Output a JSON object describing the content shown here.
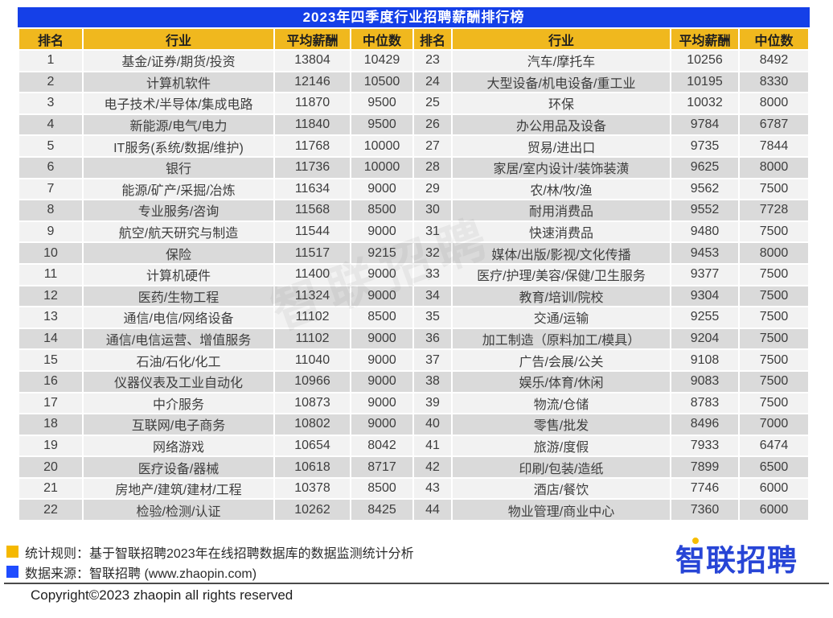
{
  "title": "2023年四季度行业招聘薪酬排行榜",
  "watermark": "智联招聘",
  "chart_data": {
    "type": "table",
    "title": "2023年四季度行业招聘薪酬排行榜",
    "columns": [
      "排名",
      "行业",
      "平均薪酬",
      "中位数"
    ],
    "layout": "two-panel table: ranks 1-22 in left panel, ranks 23-44 in right panel, zebra striped rows",
    "rows": [
      [
        1,
        "基金/证券/期货/投资",
        13804,
        10429
      ],
      [
        2,
        "计算机软件",
        12146,
        10500
      ],
      [
        3,
        "电子技术/半导体/集成电路",
        11870,
        9500
      ],
      [
        4,
        "新能源/电气/电力",
        11840,
        9500
      ],
      [
        5,
        "IT服务(系统/数据/维护)",
        11768,
        10000
      ],
      [
        6,
        "银行",
        11736,
        10000
      ],
      [
        7,
        "能源/矿产/采掘/冶炼",
        11634,
        9000
      ],
      [
        8,
        "专业服务/咨询",
        11568,
        8500
      ],
      [
        9,
        "航空/航天研究与制造",
        11544,
        9000
      ],
      [
        10,
        "保险",
        11517,
        9215
      ],
      [
        11,
        "计算机硬件",
        11400,
        9000
      ],
      [
        12,
        "医药/生物工程",
        11324,
        9000
      ],
      [
        13,
        "通信/电信/网络设备",
        11102,
        8500
      ],
      [
        14,
        "通信/电信运营、增值服务",
        11102,
        9000
      ],
      [
        15,
        "石油/石化/化工",
        11040,
        9000
      ],
      [
        16,
        "仪器仪表及工业自动化",
        10966,
        9000
      ],
      [
        17,
        "中介服务",
        10873,
        9000
      ],
      [
        18,
        "互联网/电子商务",
        10802,
        9000
      ],
      [
        19,
        "网络游戏",
        10654,
        8042
      ],
      [
        20,
        "医疗设备/器械",
        10618,
        8717
      ],
      [
        21,
        "房地产/建筑/建材/工程",
        10378,
        8500
      ],
      [
        22,
        "检验/检测/认证",
        10262,
        8425
      ],
      [
        23,
        "汽车/摩托车",
        10256,
        8492
      ],
      [
        24,
        "大型设备/机电设备/重工业",
        10195,
        8330
      ],
      [
        25,
        "环保",
        10032,
        8000
      ],
      [
        26,
        "办公用品及设备",
        9784,
        6787
      ],
      [
        27,
        "贸易/进出口",
        9735,
        7844
      ],
      [
        28,
        "家居/室内设计/装饰装潢",
        9625,
        8000
      ],
      [
        29,
        "农/林/牧/渔",
        9562,
        7500
      ],
      [
        30,
        "耐用消费品",
        9552,
        7728
      ],
      [
        31,
        "快速消费品",
        9480,
        7500
      ],
      [
        32,
        "媒体/出版/影视/文化传播",
        9453,
        8000
      ],
      [
        33,
        "医疗/护理/美容/保健/卫生服务",
        9377,
        7500
      ],
      [
        34,
        "教育/培训/院校",
        9304,
        7500
      ],
      [
        35,
        "交通/运输",
        9255,
        7500
      ],
      [
        36,
        "加工制造（原料加工/模具）",
        9204,
        7500
      ],
      [
        37,
        "广告/会展/公关",
        9108,
        7500
      ],
      [
        38,
        "娱乐/体育/休闲",
        9083,
        7500
      ],
      [
        39,
        "物流/仓储",
        8783,
        7500
      ],
      [
        40,
        "零售/批发",
        8496,
        7000
      ],
      [
        41,
        "旅游/度假",
        7933,
        6474
      ],
      [
        42,
        "印刷/包装/造纸",
        7899,
        6500
      ],
      [
        43,
        "酒店/餐饮",
        7746,
        6000
      ],
      [
        44,
        "物业管理/商业中心",
        7360,
        6000
      ]
    ]
  },
  "colors": {
    "title_bar_blue": "#1540E8",
    "header_yellow": "#F0B81E",
    "row_light": "#F2F2F2",
    "row_dark": "#DADADA",
    "legend_yellow": "#F5B800",
    "legend_blue": "#1F4CFF",
    "logo_blue": "#2745D6"
  },
  "footer": {
    "rule_note": "统计规则：基于智联招聘2023年在线招聘数据库的数据监测统计分析",
    "source_note": "数据来源：智联招聘 (www.zhaopin.com)",
    "copyright": "Copyright©2023 zhaopin all rights reserved",
    "logo_text": "智联招聘"
  }
}
